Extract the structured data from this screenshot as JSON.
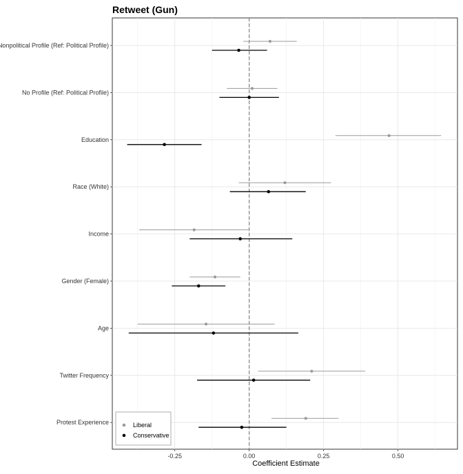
{
  "chart_data": {
    "type": "coefficient-plot",
    "title": "Retweet (Gun)",
    "xlabel": "Coefficient Estimate",
    "xlim": [
      -0.46,
      0.7
    ],
    "xticks": [
      -0.25,
      0.0,
      0.25,
      0.5
    ],
    "xtick_labels": [
      "-0.25",
      "0.00",
      "0.25",
      "0.50"
    ],
    "reference_line": 0,
    "categories": [
      "Nonpolitical Profile (Ref: Political Profile)",
      "No Profile (Ref: Political Profile)",
      "Education",
      "Race (White)",
      "Income",
      "Gender (Female)",
      "Age",
      "Twitter Frequency",
      "Protest Experience"
    ],
    "series": [
      {
        "name": "Liberal",
        "color": "#9a9a9a",
        "estimates": [
          0.07,
          0.01,
          0.47,
          0.12,
          -0.185,
          -0.115,
          -0.145,
          0.21,
          0.19
        ],
        "lower": [
          -0.02,
          -0.075,
          0.29,
          -0.035,
          -0.37,
          -0.2,
          -0.375,
          0.03,
          0.075
        ],
        "upper": [
          0.16,
          0.095,
          0.645,
          0.275,
          0.0,
          -0.03,
          0.085,
          0.39,
          0.3
        ]
      },
      {
        "name": "Conservative",
        "color": "#000000",
        "estimates": [
          -0.035,
          0.0,
          -0.285,
          0.065,
          -0.03,
          -0.17,
          -0.12,
          0.015,
          -0.025
        ],
        "lower": [
          -0.125,
          -0.1,
          -0.41,
          -0.065,
          -0.2,
          -0.26,
          -0.405,
          -0.175,
          -0.17
        ],
        "upper": [
          0.06,
          0.1,
          -0.16,
          0.19,
          0.145,
          -0.08,
          0.165,
          0.205,
          0.125
        ]
      }
    ],
    "legend": {
      "position": "bottom-left",
      "entries": [
        "Liberal",
        "Conservative"
      ]
    }
  }
}
